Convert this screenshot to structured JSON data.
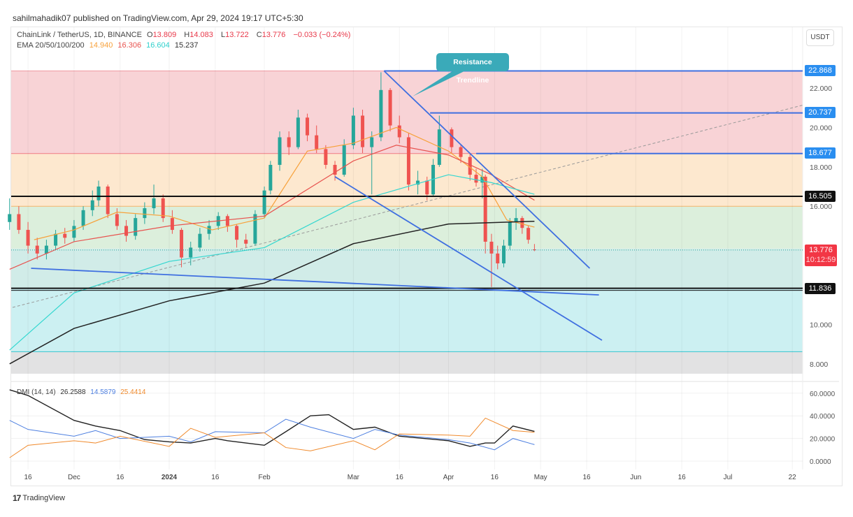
{
  "publisher": "sahilmahadik07 published on TradingView.com, Apr 29, 2024 19:17 UTC+5:30",
  "symbol": {
    "name": "ChainLink / TetherUS, 1D, BINANCE",
    "o_label": "O",
    "o": "13.809",
    "h_label": "H",
    "h": "14.083",
    "l_label": "L",
    "l": "13.722",
    "c_label": "C",
    "c": "13.776",
    "change": "−0.033 (−0.24%)"
  },
  "ema_legend": {
    "label": "EMA 20/50/100/200",
    "v20": "14.940",
    "v50": "16.306",
    "v100": "16.604",
    "v200": "15.237"
  },
  "dmi_legend": {
    "label": "DMI (14, 14)",
    "adx": "26.2588",
    "plus_di": "14.5879",
    "minus_di": "25.4414"
  },
  "currency_button": "USDT",
  "price_tags": {
    "p1": "22.868",
    "p2": "20.737",
    "p3": "18.677",
    "p4": "16.505",
    "last": "13.776",
    "countdown": "10:12:59",
    "p5": "11.836"
  },
  "callout": "Resistance Trendline",
  "footer_brand": "TradingView",
  "colors": {
    "up": "#26a69a",
    "down": "#ef5350",
    "ema20": "#f7a13a",
    "ema50": "#e8534f",
    "ema100": "#34d7d0",
    "ema200": "#222222",
    "adx": "#222222",
    "plus_di": "#4d7fe0",
    "minus_di": "#f08a2c",
    "trendline": "#3f6fe0",
    "callout": "#3aaab9"
  },
  "chart_data": [
    {
      "type": "candlestick",
      "ylim": [
        7.5,
        24
      ],
      "y_ticks": [
        "22.000",
        "20.000",
        "18.000",
        "16.000",
        "10.000",
        "8.000"
      ],
      "x_ticks": [
        "16",
        "Dec",
        "16",
        "2024",
        "16",
        "Feb",
        "Mar",
        "16",
        "Apr",
        "16",
        "May",
        "16",
        "Jun",
        "16",
        "Jul",
        "22"
      ],
      "x_tick_dates": [
        "2023-11-16",
        "2023-12-01",
        "2023-12-16",
        "2024-01-01",
        "2024-01-16",
        "2024-02-01",
        "2024-03-01",
        "2024-03-16",
        "2024-04-01",
        "2024-04-16",
        "2024-05-01",
        "2024-05-16",
        "2024-06-01",
        "2024-06-16",
        "2024-07-01",
        "2024-07-22"
      ],
      "candles": [
        [
          "2023-11-10",
          15.2,
          16.4,
          14.8,
          15.6
        ],
        [
          "2023-11-13",
          15.6,
          16.0,
          14.6,
          14.8
        ],
        [
          "2023-11-16",
          14.8,
          15.2,
          13.6,
          14.0
        ],
        [
          "2023-11-19",
          14.0,
          14.4,
          13.3,
          13.6
        ],
        [
          "2023-11-22",
          13.6,
          14.3,
          13.3,
          14.0
        ],
        [
          "2023-11-25",
          14.0,
          14.8,
          13.8,
          14.6
        ],
        [
          "2023-11-28",
          14.6,
          14.9,
          14.1,
          14.4
        ],
        [
          "2023-12-01",
          14.4,
          15.3,
          14.2,
          15.0
        ],
        [
          "2023-12-04",
          15.0,
          16.0,
          14.8,
          15.8
        ],
        [
          "2023-12-07",
          15.8,
          16.8,
          15.5,
          16.3
        ],
        [
          "2023-12-09",
          16.3,
          17.3,
          16.0,
          17.0
        ],
        [
          "2023-12-12",
          17.0,
          17.1,
          15.4,
          15.6
        ],
        [
          "2023-12-15",
          15.6,
          15.9,
          14.8,
          15.0
        ],
        [
          "2023-12-18",
          15.0,
          15.3,
          14.2,
          14.5
        ],
        [
          "2023-12-21",
          14.5,
          15.6,
          14.3,
          15.4
        ],
        [
          "2023-12-24",
          15.4,
          16.2,
          15.1,
          15.9
        ],
        [
          "2023-12-27",
          15.9,
          17.1,
          15.6,
          16.4
        ],
        [
          "2023-12-30",
          16.4,
          16.6,
          15.2,
          15.4
        ],
        [
          "2024-01-02",
          15.4,
          15.8,
          14.6,
          14.8
        ],
        [
          "2024-01-05",
          14.8,
          14.9,
          12.9,
          13.4
        ],
        [
          "2024-01-08",
          13.4,
          14.2,
          13.0,
          13.9
        ],
        [
          "2024-01-11",
          13.9,
          14.9,
          13.7,
          14.6
        ],
        [
          "2024-01-14",
          14.6,
          15.3,
          14.3,
          15.0
        ],
        [
          "2024-01-17",
          15.0,
          15.7,
          14.8,
          15.5
        ],
        [
          "2024-01-20",
          15.5,
          15.6,
          14.7,
          15.0
        ],
        [
          "2024-01-23",
          15.0,
          15.1,
          13.9,
          14.3
        ],
        [
          "2024-01-26",
          14.3,
          14.6,
          13.9,
          14.1
        ],
        [
          "2024-01-29",
          14.1,
          15.8,
          14.0,
          15.6
        ],
        [
          "2024-02-01",
          15.6,
          17.0,
          15.4,
          16.8
        ],
        [
          "2024-02-03",
          16.8,
          18.3,
          16.6,
          18.1
        ],
        [
          "2024-02-06",
          18.1,
          19.8,
          17.8,
          19.5
        ],
        [
          "2024-02-09",
          19.5,
          19.8,
          18.6,
          19.0
        ],
        [
          "2024-02-12",
          19.0,
          20.9,
          18.9,
          20.5
        ],
        [
          "2024-02-15",
          20.5,
          20.7,
          19.3,
          19.6
        ],
        [
          "2024-02-18",
          19.6,
          20.1,
          18.7,
          18.9
        ],
        [
          "2024-02-21",
          18.9,
          19.1,
          17.9,
          18.1
        ],
        [
          "2024-02-24",
          18.1,
          18.3,
          17.3,
          17.6
        ],
        [
          "2024-02-27",
          17.6,
          19.4,
          17.5,
          19.1
        ],
        [
          "2024-03-01",
          19.1,
          21.0,
          18.9,
          20.6
        ],
        [
          "2024-03-04",
          20.6,
          20.9,
          18.7,
          19.0
        ],
        [
          "2024-03-07",
          19.0,
          19.8,
          16.6,
          19.5
        ],
        [
          "2024-03-10",
          19.5,
          22.8,
          19.3,
          21.9
        ],
        [
          "2024-03-13",
          21.9,
          22.0,
          19.8,
          20.1
        ],
        [
          "2024-03-16",
          20.1,
          20.6,
          19.2,
          19.5
        ],
        [
          "2024-03-19",
          19.5,
          19.7,
          16.8,
          17.1
        ],
        [
          "2024-03-22",
          17.1,
          17.8,
          16.6,
          17.3
        ],
        [
          "2024-03-25",
          17.3,
          17.5,
          16.3,
          16.6
        ],
        [
          "2024-03-27",
          16.6,
          18.4,
          16.5,
          18.1
        ],
        [
          "2024-03-29",
          18.1,
          20.6,
          18.0,
          19.9
        ],
        [
          "2024-04-02",
          19.9,
          20.0,
          18.7,
          19.0
        ],
        [
          "2024-04-05",
          19.0,
          19.1,
          18.2,
          18.5
        ],
        [
          "2024-04-08",
          18.5,
          18.7,
          17.3,
          17.6
        ],
        [
          "2024-04-10",
          17.6,
          17.9,
          17.0,
          17.2
        ],
        [
          "2024-04-12",
          17.2,
          17.9,
          16.4,
          17.5
        ],
        [
          "2024-04-13",
          17.5,
          17.6,
          13.6,
          14.2
        ],
        [
          "2024-04-15",
          14.2,
          14.6,
          11.9,
          13.6
        ],
        [
          "2024-04-17",
          13.6,
          14.0,
          12.8,
          13.1
        ],
        [
          "2024-04-19",
          13.1,
          14.3,
          12.9,
          14.0
        ],
        [
          "2024-04-21",
          14.0,
          15.4,
          13.8,
          15.2
        ],
        [
          "2024-04-23",
          15.2,
          15.9,
          14.8,
          15.4
        ],
        [
          "2024-04-25",
          15.4,
          15.5,
          14.6,
          14.9
        ],
        [
          "2024-04-27",
          14.9,
          15.0,
          14.1,
          14.3
        ],
        [
          "2024-04-29",
          13.809,
          14.083,
          13.722,
          13.776
        ]
      ],
      "ema": {
        "ema20": [
          [
            "2023-11-18",
            14.3
          ],
          [
            "2023-12-01",
            14.8
          ],
          [
            "2023-12-15",
            15.7
          ],
          [
            "2024-01-01",
            15.5
          ],
          [
            "2024-01-15",
            14.8
          ],
          [
            "2024-02-01",
            15.4
          ],
          [
            "2024-02-15",
            18.8
          ],
          [
            "2024-03-01",
            19.2
          ],
          [
            "2024-03-15",
            20.0
          ],
          [
            "2024-04-01",
            18.8
          ],
          [
            "2024-04-12",
            17.5
          ],
          [
            "2024-04-20",
            15.3
          ],
          [
            "2024-04-29",
            14.94
          ]
        ],
        "ema50": [
          [
            "2023-11-10",
            12.8
          ],
          [
            "2023-12-01",
            14.2
          ],
          [
            "2024-01-01",
            15.0
          ],
          [
            "2024-02-01",
            15.5
          ],
          [
            "2024-03-01",
            18.3
          ],
          [
            "2024-03-15",
            19.1
          ],
          [
            "2024-04-01",
            18.6
          ],
          [
            "2024-04-15",
            17.6
          ],
          [
            "2024-04-29",
            16.306
          ]
        ],
        "ema100": [
          [
            "2023-11-10",
            8.7
          ],
          [
            "2023-12-01",
            11.6
          ],
          [
            "2024-01-01",
            13.2
          ],
          [
            "2024-02-01",
            13.9
          ],
          [
            "2024-03-01",
            16.2
          ],
          [
            "2024-04-01",
            17.6
          ],
          [
            "2024-04-15",
            17.2
          ],
          [
            "2024-04-29",
            16.604
          ]
        ],
        "ema200": [
          [
            "2023-11-10",
            8.0
          ],
          [
            "2023-12-01",
            9.8
          ],
          [
            "2024-01-01",
            11.2
          ],
          [
            "2024-02-01",
            12.1
          ],
          [
            "2024-03-01",
            14.1
          ],
          [
            "2024-04-01",
            15.1
          ],
          [
            "2024-04-29",
            15.237
          ]
        ]
      },
      "horizontal_levels": {
        "blue": [
          22.868,
          20.737,
          18.677
        ],
        "black": [
          16.505,
          11.836
        ]
      },
      "fib_bands": [
        {
          "from": 22.868,
          "to": 18.677,
          "color": "#f8d3d6"
        },
        {
          "from": 18.677,
          "to": 16.0,
          "color": "#fde8cf"
        },
        {
          "from": 16.0,
          "to": 13.85,
          "color": "#dcefdc"
        },
        {
          "from": 13.85,
          "to": 11.836,
          "color": "#d1ece8"
        },
        {
          "from": 11.836,
          "to": 8.62,
          "color": "#ccf0f2"
        },
        {
          "from": 8.62,
          "to": 7.5,
          "color": "#e2e2e3"
        }
      ],
      "trendlines": [
        {
          "from": [
            "2024-03-11",
            22.868
          ],
          "to": [
            "2024-05-17",
            12.85
          ]
        },
        {
          "from": [
            "2024-02-24",
            17.5
          ],
          "to": [
            "2024-05-21",
            9.2
          ]
        },
        {
          "from": [
            "2023-11-17",
            12.85
          ],
          "to": [
            "2024-05-20",
            11.5
          ]
        }
      ],
      "last_price": 13.776
    },
    {
      "type": "line",
      "ylim": [
        -5,
        66
      ],
      "y_ticks": [
        "60.0000",
        "40.0000",
        "20.0000",
        "0.0000"
      ],
      "series": [
        {
          "name": "ADX",
          "points": [
            [
              "2023-11-10",
              63
            ],
            [
              "2023-11-16",
              58
            ],
            [
              "2023-12-01",
              36
            ],
            [
              "2023-12-08",
              31
            ],
            [
              "2023-12-16",
              27
            ],
            [
              "2023-12-24",
              19
            ],
            [
              "2024-01-01",
              17
            ],
            [
              "2024-01-08",
              16
            ],
            [
              "2024-01-16",
              20
            ],
            [
              "2024-01-20",
              18
            ],
            [
              "2024-02-01",
              14
            ],
            [
              "2024-02-08",
              26
            ],
            [
              "2024-02-16",
              40
            ],
            [
              "2024-02-22",
              41
            ],
            [
              "2024-03-01",
              28
            ],
            [
              "2024-03-08",
              30
            ],
            [
              "2024-03-16",
              22
            ],
            [
              "2024-04-01",
              18
            ],
            [
              "2024-04-08",
              13
            ],
            [
              "2024-04-13",
              16
            ],
            [
              "2024-04-16",
              16
            ],
            [
              "2024-04-22",
              31
            ],
            [
              "2024-04-29",
              26.2588
            ]
          ]
        },
        {
          "name": "+DI",
          "points": [
            [
              "2023-11-10",
              36
            ],
            [
              "2023-11-16",
              28
            ],
            [
              "2023-12-01",
              22
            ],
            [
              "2023-12-08",
              27
            ],
            [
              "2023-12-16",
              20
            ],
            [
              "2024-01-01",
              22
            ],
            [
              "2024-01-08",
              17
            ],
            [
              "2024-01-16",
              26
            ],
            [
              "2024-02-01",
              25
            ],
            [
              "2024-02-08",
              37
            ],
            [
              "2024-02-16",
              30
            ],
            [
              "2024-03-01",
              20
            ],
            [
              "2024-03-08",
              28
            ],
            [
              "2024-03-16",
              23
            ],
            [
              "2024-04-01",
              19
            ],
            [
              "2024-04-08",
              16
            ],
            [
              "2024-04-16",
              10
            ],
            [
              "2024-04-22",
              20
            ],
            [
              "2024-04-29",
              14.5879
            ]
          ]
        },
        {
          "name": "-DI",
          "points": [
            [
              "2023-11-10",
              3
            ],
            [
              "2023-11-16",
              14
            ],
            [
              "2023-12-01",
              18
            ],
            [
              "2023-12-08",
              16
            ],
            [
              "2023-12-16",
              22
            ],
            [
              "2024-01-01",
              13
            ],
            [
              "2024-01-08",
              29
            ],
            [
              "2024-01-16",
              21
            ],
            [
              "2024-02-01",
              25
            ],
            [
              "2024-02-08",
              12
            ],
            [
              "2024-02-16",
              9
            ],
            [
              "2024-03-01",
              18
            ],
            [
              "2024-03-08",
              10
            ],
            [
              "2024-03-16",
              24
            ],
            [
              "2024-04-01",
              23
            ],
            [
              "2024-04-08",
              22
            ],
            [
              "2024-04-13",
              38
            ],
            [
              "2024-04-22",
              27
            ],
            [
              "2024-04-29",
              25.4414
            ]
          ]
        }
      ]
    }
  ]
}
